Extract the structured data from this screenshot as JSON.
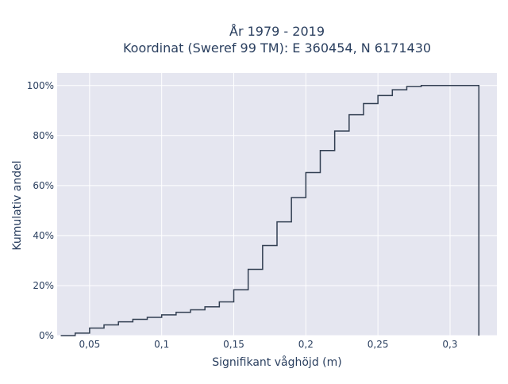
{
  "chart_data": {
    "type": "line",
    "subtype": "ecdf-step",
    "title_line1": "År 1979 - 2019",
    "title_line2": "Koordinat (Sweref 99 TM): E 360454, N 6171430",
    "xlabel": "Signifikant våghöjd (m)",
    "ylabel": "Kumulativ andel",
    "xlim": [
      0.0275,
      0.3325
    ],
    "ylim": [
      0,
      1.05
    ],
    "x_ticks": [
      {
        "value": 0.05,
        "label": "0,05"
      },
      {
        "value": 0.1,
        "label": "0,1"
      },
      {
        "value": 0.15,
        "label": "0,15"
      },
      {
        "value": 0.2,
        "label": "0,2"
      },
      {
        "value": 0.25,
        "label": "0,25"
      },
      {
        "value": 0.3,
        "label": "0,3"
      }
    ],
    "y_ticks": [
      {
        "value": 0,
        "label": "0%"
      },
      {
        "value": 0.2,
        "label": "20%"
      },
      {
        "value": 0.4,
        "label": "40%"
      },
      {
        "value": 0.6,
        "label": "60%"
      },
      {
        "value": 0.8,
        "label": "80%"
      },
      {
        "value": 1.0,
        "label": "100%"
      }
    ],
    "grid": true,
    "colors": {
      "plot_background": "#e5e6f0",
      "grid": "#ffffff",
      "line": "#323f52",
      "text": "#2a3f5f"
    },
    "series": [
      {
        "x": [
          0.03,
          0.04,
          0.05,
          0.06,
          0.07,
          0.08,
          0.09,
          0.1,
          0.11,
          0.12,
          0.13,
          0.14,
          0.15,
          0.16,
          0.17,
          0.18,
          0.19,
          0.2,
          0.21,
          0.22,
          0.23,
          0.24,
          0.25,
          0.26,
          0.27,
          0.28,
          0.29,
          0.3,
          0.31,
          0.32
        ],
        "y": [
          0.0,
          0.01,
          0.03,
          0.043,
          0.055,
          0.065,
          0.073,
          0.083,
          0.093,
          0.103,
          0.115,
          0.135,
          0.183,
          0.265,
          0.36,
          0.455,
          0.552,
          0.652,
          0.74,
          0.818,
          0.883,
          0.928,
          0.96,
          0.983,
          0.996,
          1.0,
          1.0,
          1.0,
          1.0,
          0.0
        ]
      }
    ]
  }
}
